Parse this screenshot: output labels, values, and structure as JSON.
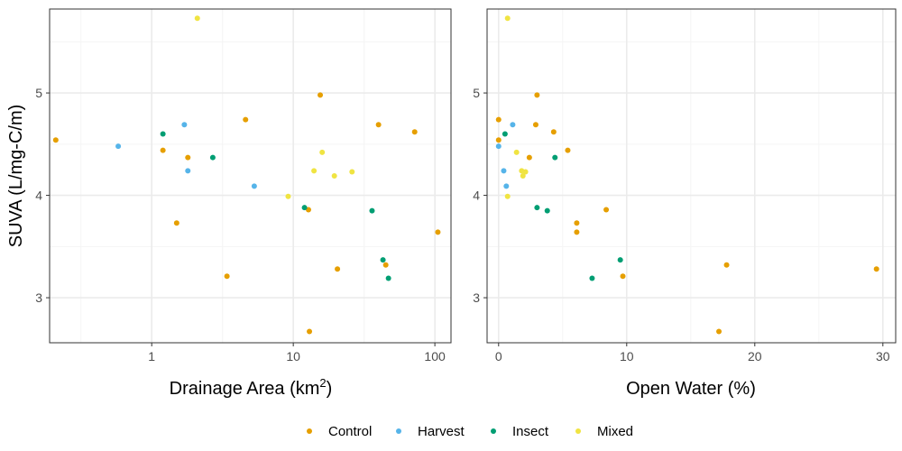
{
  "chart_data": [
    {
      "type": "scatter",
      "panel": "left",
      "xlabel": "Drainage Area (km",
      "xlabel_sup": "2",
      "xlabel_close": ")",
      "ylabel": "SUVA (L/mg-C/m)",
      "x_scale": "log10",
      "xlim": [
        0.19,
        130
      ],
      "ylim": [
        2.56,
        5.82
      ],
      "x_ticks": [
        1,
        10,
        100
      ],
      "x_tick_labels": [
        "1",
        "10",
        "100"
      ],
      "y_ticks": [
        3,
        4,
        5
      ],
      "y_tick_labels": [
        "3",
        "4",
        "5"
      ],
      "grid": true,
      "series": [
        {
          "name": "Control",
          "points": [
            [
              0.21,
              4.54
            ],
            [
              1.2,
              4.44
            ],
            [
              1.5,
              3.73
            ],
            [
              1.8,
              4.37
            ],
            [
              3.4,
              3.21
            ],
            [
              4.6,
              4.74
            ],
            [
              12.8,
              3.86
            ],
            [
              13.0,
              2.67
            ],
            [
              15.5,
              4.98
            ],
            [
              20.5,
              3.28
            ],
            [
              40,
              4.69
            ],
            [
              45,
              3.32
            ],
            [
              72,
              4.62
            ],
            [
              105,
              3.64
            ]
          ]
        },
        {
          "name": "Harvest",
          "points": [
            [
              0.58,
              4.48
            ],
            [
              1.7,
              4.69
            ],
            [
              1.8,
              4.24
            ],
            [
              5.3,
              4.09
            ]
          ]
        },
        {
          "name": "Insect",
          "points": [
            [
              1.2,
              4.6
            ],
            [
              2.7,
              4.37
            ],
            [
              12,
              3.88
            ],
            [
              36,
              3.85
            ],
            [
              43,
              3.37
            ],
            [
              47,
              3.19
            ]
          ]
        },
        {
          "name": "Mixed",
          "points": [
            [
              2.1,
              5.73
            ],
            [
              9.2,
              3.99
            ],
            [
              14,
              4.24
            ],
            [
              16,
              4.42
            ],
            [
              19.5,
              4.19
            ],
            [
              26,
              4.23
            ]
          ]
        }
      ]
    },
    {
      "type": "scatter",
      "panel": "right",
      "xlabel": "Open Water (%)",
      "x_scale": "linear",
      "xlim": [
        -0.9,
        31
      ],
      "ylim": [
        2.56,
        5.82
      ],
      "x_ticks": [
        0,
        10,
        20,
        30
      ],
      "x_tick_labels": [
        "0",
        "10",
        "20",
        "30"
      ],
      "y_ticks": [
        3,
        4,
        5
      ],
      "y_tick_labels": [
        "3",
        "4",
        "5"
      ],
      "grid": true,
      "series": [
        {
          "name": "Control",
          "points": [
            [
              0,
              4.54
            ],
            [
              0,
              4.74
            ],
            [
              2.4,
              4.37
            ],
            [
              2.9,
              4.69
            ],
            [
              3.0,
              4.98
            ],
            [
              4.3,
              4.62
            ],
            [
              5.4,
              4.44
            ],
            [
              6.1,
              3.73
            ],
            [
              6.1,
              3.64
            ],
            [
              8.4,
              3.86
            ],
            [
              9.7,
              3.21
            ],
            [
              17.2,
              2.67
            ],
            [
              17.8,
              3.32
            ],
            [
              29.5,
              3.28
            ]
          ]
        },
        {
          "name": "Harvest",
          "points": [
            [
              0,
              4.48
            ],
            [
              0.4,
              4.24
            ],
            [
              0.6,
              4.09
            ],
            [
              1.1,
              4.69
            ]
          ]
        },
        {
          "name": "Insect",
          "points": [
            [
              0.5,
              4.6
            ],
            [
              3.0,
              3.88
            ],
            [
              3.8,
              3.85
            ],
            [
              4.4,
              4.37
            ],
            [
              7.3,
              3.19
            ],
            [
              9.5,
              3.37
            ]
          ]
        },
        {
          "name": "Mixed",
          "points": [
            [
              0.7,
              5.73
            ],
            [
              0.7,
              3.99
            ],
            [
              1.4,
              4.42
            ],
            [
              1.8,
              4.24
            ],
            [
              1.9,
              4.19
            ],
            [
              2.1,
              4.23
            ]
          ]
        }
      ]
    }
  ],
  "legend": {
    "position": "bottom",
    "items": [
      {
        "name": "Control",
        "color": "#E69F00"
      },
      {
        "name": "Harvest",
        "color": "#56B4E9"
      },
      {
        "name": "Insect",
        "color": "#009E73"
      },
      {
        "name": "Mixed",
        "color": "#F0E442"
      }
    ]
  },
  "colors": {
    "Control": "#E69F00",
    "Harvest": "#56B4E9",
    "Insect": "#009E73",
    "Mixed": "#F0E442",
    "panel_border": "#333333",
    "grid_major": "#EBEBEB",
    "grid_minor": "#F5F5F5"
  }
}
